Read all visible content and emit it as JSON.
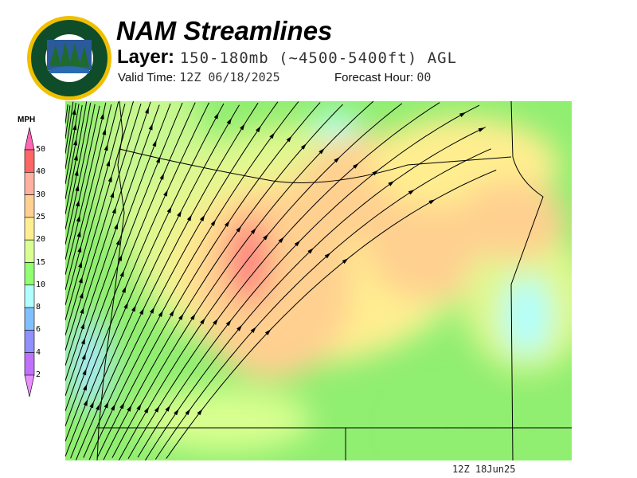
{
  "logo": {
    "text_top": "OREGON",
    "text_bottom": "DEPARTMENT OF FORESTRY",
    "colors": {
      "ring": "#f0c000",
      "field": "#0f4d2a"
    }
  },
  "header": {
    "title": "NAM Streamlines",
    "layer_label": "Layer:",
    "layer_value": "150-180mb (~4500-5400ft) AGL",
    "valid_label": "Valid Time:",
    "valid_value": "12Z 06/18/2025",
    "forecast_label": "Forecast Hour:",
    "forecast_value": "00"
  },
  "legend": {
    "unit": "MPH",
    "ticks": [
      "50",
      "40",
      "30",
      "25",
      "20",
      "15",
      "10",
      "8",
      "6",
      "4",
      "2"
    ],
    "colors": {
      "over": "#ff66b4",
      "40-50": "#ff6666",
      "30-40": "#ffb0a0",
      "25-30": "#ffd090",
      "20-25": "#ffee90",
      "15-20": "#d8ff90",
      "10-15": "#90ff70",
      "8-10": "#b0ffff",
      "6-8": "#80c0ff",
      "4-6": "#9090ff",
      "2-4": "#c070ff",
      "under": "#e890ff"
    }
  },
  "footer": {
    "timestamp": "12Z 18Jun25"
  }
}
